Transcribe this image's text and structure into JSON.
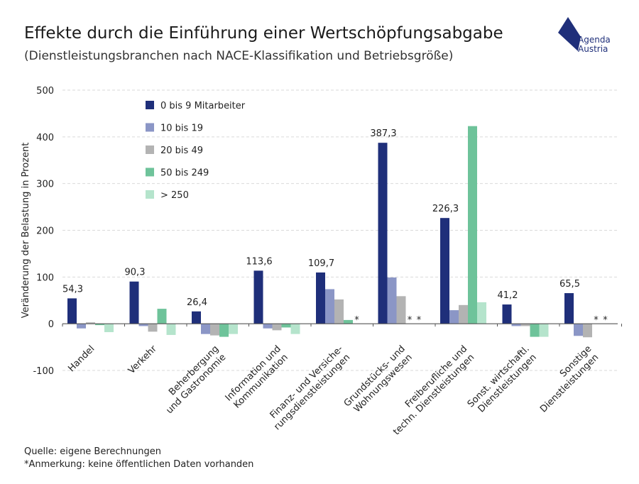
{
  "header": {
    "title": "Effekte durch die Einführung einer Wertschöpfungsabgabe",
    "subtitle": "(Dienstleistungsbranchen nach NACE-Klassifikation und Betriebsgröße)"
  },
  "logo": {
    "line1": "Agenda",
    "line2": "Austria",
    "color": "#1f2f7a"
  },
  "footer": {
    "source": "Quelle: eigene Berechnungen",
    "note": "*Anmerkung: keine öffentlichen Daten vorhanden"
  },
  "chart_data": {
    "type": "bar",
    "title": "Effekte durch die Einführung einer Wertschöpfungsabgabe",
    "subtitle": "(Dienstleistungsbranchen nach NACE-Klassifikation und Betriebsgröße)",
    "ylabel": "Veränderung der Belastung in Prozent",
    "xlabel": "",
    "ylim": [
      -100,
      500
    ],
    "yticks": [
      -100,
      0,
      100,
      200,
      300,
      400,
      500
    ],
    "grid": true,
    "legend_position": "top-left",
    "categories": [
      [
        "Handel"
      ],
      [
        "Verkehr"
      ],
      [
        "Beherbergung",
        "und Gastronomie"
      ],
      [
        "Information und",
        "Kommunikation"
      ],
      [
        "Finanz- und Versiche-",
        "rungsdienstleistungen"
      ],
      [
        "Grundstücks- und",
        "Wohnungswesen"
      ],
      [
        "Freiberufliche und",
        "techn. Dienstleistungen"
      ],
      [
        "Sonst. wirtschaftl.",
        "Dienstleistungen"
      ],
      [
        "Sonstige",
        "Dienstleistungen"
      ]
    ],
    "series": [
      {
        "name": "0 bis 9 Mitarbeiter",
        "color": "#1f2f7a",
        "values": [
          54.3,
          90.3,
          26.4,
          113.6,
          109.7,
          387.3,
          226.3,
          41.2,
          65.5
        ]
      },
      {
        "name": "10 bis 19",
        "color": "#8b96c6",
        "values": [
          -10,
          -5,
          -22,
          -10,
          74,
          99,
          29,
          -5,
          -26
        ]
      },
      {
        "name": "20 bis 49",
        "color": "#b3b3b3",
        "values": [
          3,
          -17,
          -25,
          -14,
          52,
          59,
          40,
          -5,
          -29
        ]
      },
      {
        "name": "50 bis 249",
        "color": "#6ec39a",
        "values": [
          -3,
          32,
          -28,
          -8,
          8,
          null,
          423,
          -28,
          null
        ]
      },
      {
        "name": "> 250",
        "color": "#b5e4cc",
        "values": [
          -18,
          -24,
          -22,
          -22,
          null,
          null,
          46,
          -28,
          null
        ]
      }
    ],
    "data_labels": [
      "54,3",
      "90,3",
      "26,4",
      "113,6",
      "109,7",
      "387,3",
      "226,3",
      "41,2",
      "65,5"
    ],
    "missing_marker": "*"
  }
}
